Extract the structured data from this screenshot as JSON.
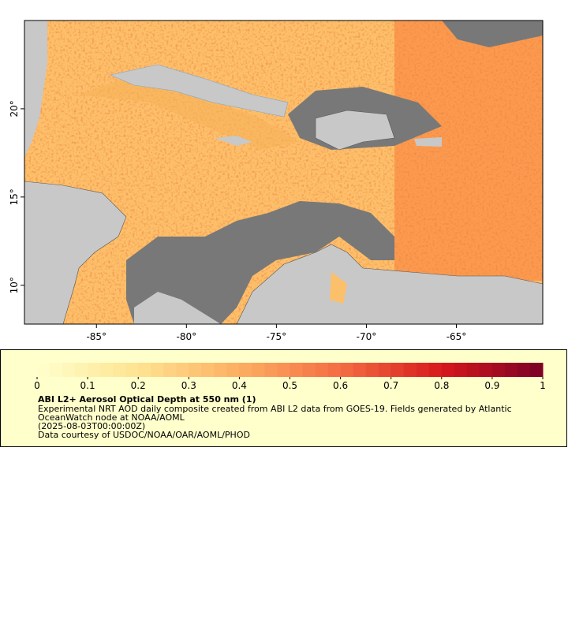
{
  "map": {
    "xlim": [
      -89,
      -60.2
    ],
    "ylim": [
      7.8,
      25
    ],
    "xticks": [
      {
        "value": -85,
        "label": "-85°"
      },
      {
        "value": -80,
        "label": "-80°"
      },
      {
        "value": -75,
        "label": "-75°"
      },
      {
        "value": -70,
        "label": "-70°"
      },
      {
        "value": -65,
        "label": "-65°"
      }
    ],
    "yticks": [
      {
        "value": 10,
        "label": "10°"
      },
      {
        "value": 15,
        "label": "15°"
      },
      {
        "value": 20,
        "label": "20°"
      }
    ]
  },
  "colorbar": {
    "lim": [
      0,
      1
    ],
    "ticks": [
      0,
      0.1,
      0.2,
      0.3,
      0.4,
      0.5,
      0.6,
      0.7,
      0.8,
      0.9,
      1
    ],
    "colors": [
      "#ffffcc",
      "#fee391",
      "#fdae61",
      "#f46d43",
      "#d7191c",
      "#7a0026"
    ]
  },
  "legend": {
    "title": "ABI L2+ Aerosol Optical Depth at 550 nm (1)",
    "lines": [
      "Experimental NRT AOD daily composite created from ABI L2 data from GOES-19. Fields generated by Atlantic",
      "OceanWatch node at NOAA/AOML",
      "(2025-08-03T00:00:00Z)",
      "Data courtesy of USDOC/NOAA/OAR/AOML/PHOD"
    ]
  }
}
